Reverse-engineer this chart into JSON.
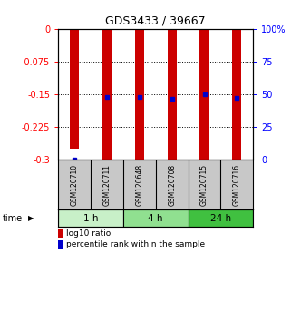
{
  "title": "GDS3433 / 39667",
  "samples": [
    "GSM120710",
    "GSM120711",
    "GSM120648",
    "GSM120708",
    "GSM120715",
    "GSM120716"
  ],
  "groups": [
    {
      "label": "1 h",
      "indices": [
        0,
        1
      ],
      "color": "#c8f0c8"
    },
    {
      "label": "4 h",
      "indices": [
        2,
        3
      ],
      "color": "#90e090"
    },
    {
      "label": "24 h",
      "indices": [
        4,
        5
      ],
      "color": "#40c040"
    }
  ],
  "log10_ratio": [
    -0.275,
    -0.3,
    -0.3,
    -0.3,
    -0.3,
    -0.3
  ],
  "log10_bar_top": [
    0.0,
    0.0,
    0.0,
    0.0,
    0.0,
    0.0
  ],
  "percentile_rank": [
    -0.3,
    -0.155,
    -0.155,
    -0.16,
    -0.15,
    -0.158
  ],
  "ylim": [
    -0.3,
    0.0
  ],
  "yticks_left": [
    0,
    -0.075,
    -0.15,
    -0.225,
    -0.3
  ],
  "yticks_right": [
    100,
    75,
    50,
    25,
    0
  ],
  "bar_color": "#cc0000",
  "dot_color": "#0000cc",
  "bar_width": 0.28,
  "bg_color": "#ffffff",
  "legend_red": "log10 ratio",
  "legend_blue": "percentile rank within the sample",
  "sample_bg": "#c8c8c8",
  "time_label": "time"
}
